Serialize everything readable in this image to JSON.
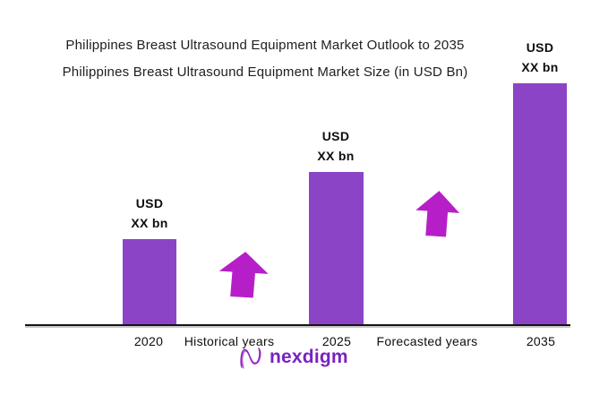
{
  "title": {
    "line1": "Philippines Breast Ultrasound Equipment Market Outlook to 2035",
    "line2": "Philippines Breast Ultrasound Equipment Market Size (in USD Bn)"
  },
  "chart_data": {
    "type": "bar",
    "title": "Philippines Breast Ultrasound Equipment Market Outlook to 2035",
    "subtitle": "Philippines Breast Ultrasound Equipment Market Size (in USD Bn)",
    "categories": [
      "2020",
      "2025",
      "2035"
    ],
    "values": [
      "XX",
      "XX",
      "XX"
    ],
    "unit": "USD bn",
    "bars": [
      {
        "category": "2020",
        "label_line1": "USD",
        "label_line2": "XX bn",
        "relative_height": 0.356
      },
      {
        "category": "2025",
        "label_line1": "USD",
        "label_line2": "XX bn",
        "relative_height": 0.633
      },
      {
        "category": "2035",
        "label_line1": "USD",
        "label_line2": "XX bn",
        "relative_height": 1.0
      }
    ],
    "annotations": [
      {
        "text": "Historical years"
      },
      {
        "text": "Forecasted years"
      }
    ],
    "grid": false,
    "legend": "none",
    "bar_color": "#8B44C6",
    "arrow_color": "#B61FC8"
  },
  "logo": {
    "text": "nexdigm"
  },
  "colors": {
    "bar": "#8B44C6",
    "arrow": "#B61FC8",
    "logo_text": "#7823C0",
    "title_text": "#1E1E1E",
    "axis": "#141414"
  }
}
